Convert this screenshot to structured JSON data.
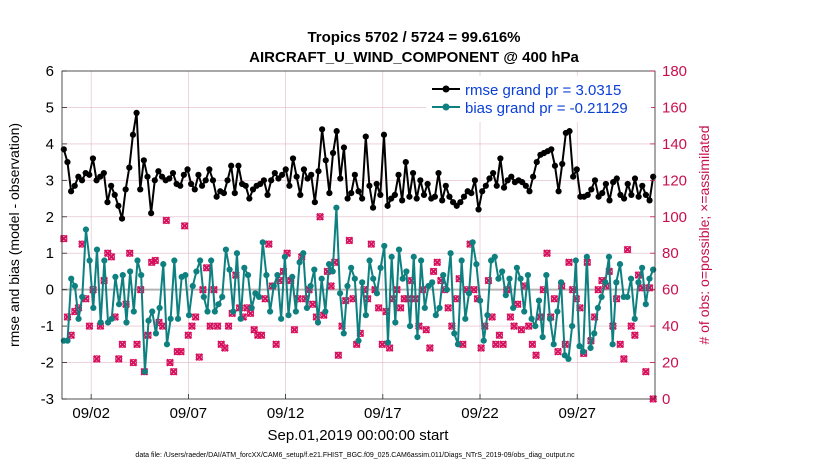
{
  "chart_data": {
    "type": "line",
    "title_line1": "Tropics 5702 / 5724 = 99.616%",
    "title_line2": "AIRCRAFT_U_WIND_COMPONENT @ 400 hPa",
    "ylabel_left": "rmse and bias (model - observation)",
    "ylabel_right": "# of obs: o=possible; ×=assimilated",
    "xlabel": "Sep.01,2019 00:00:00 start",
    "footnote": "data file: /Users/raeder/DAI/ATM_forcXX/CAM6_setup/f.e21.FHIST_BGC.f09_025.CAM6assim.011/Diags_NTrS_2019-09/obs_diag_output.nc",
    "x_range_days": [
      0.5,
      31.0
    ],
    "ylim_left": [
      -3,
      6
    ],
    "ylim_right": [
      0,
      180
    ],
    "yticks_left": [
      "-3",
      "-2",
      "-1",
      "0",
      "1",
      "2",
      "3",
      "4",
      "5",
      "6"
    ],
    "yticks_right": [
      "0",
      "20",
      "40",
      "60",
      "80",
      "100",
      "120",
      "140",
      "160",
      "180"
    ],
    "xticks": [
      {
        "day": 2,
        "label": "09/02"
      },
      {
        "day": 7,
        "label": "09/07"
      },
      {
        "day": 12,
        "label": "09/12"
      },
      {
        "day": 17,
        "label": "09/17"
      },
      {
        "day": 22,
        "label": "09/22"
      },
      {
        "day": 27,
        "label": "09/27"
      }
    ],
    "grid": true,
    "legend_position": "top-right",
    "colors": {
      "rmse": "#000000",
      "bias": "#0e8080",
      "obs": "#d6105d",
      "right_axis": "#c8104e",
      "legend_text": "#0a3fd6",
      "zero_line": "#b4b4b4",
      "grid": "#e0b8c8"
    },
    "series": [
      {
        "name": "rmse grand pr = 3.0315",
        "axis": "left",
        "values": [
          3.85,
          3.5,
          2.7,
          2.85,
          3.1,
          3.0,
          3.2,
          3.15,
          3.6,
          3.0,
          3.1,
          3.2,
          2.4,
          2.85,
          2.6,
          2.3,
          1.95,
          2.75,
          3.35,
          4.25,
          4.85,
          2.75,
          3.55,
          3.1,
          2.1,
          3.0,
          3.25,
          3.1,
          3.0,
          3.05,
          3.2,
          2.9,
          2.85,
          3.15,
          3.3,
          2.9,
          2.75,
          3.15,
          2.85,
          3.0,
          3.3,
          3.0,
          2.55,
          2.7,
          2.65,
          3.0,
          3.4,
          2.65,
          3.4,
          2.9,
          2.85,
          2.5,
          2.75,
          2.85,
          2.9,
          3.0,
          2.6,
          3.0,
          3.2,
          3.05,
          3.15,
          3.3,
          2.85,
          3.6,
          3.1,
          2.6,
          3.3,
          3.05,
          3.15,
          2.4,
          3.25,
          4.4,
          3.55,
          2.65,
          3.75,
          4.35,
          3.05,
          3.9,
          2.5,
          2.65,
          3.15,
          2.7,
          2.5,
          4.2,
          2.85,
          2.25,
          2.9,
          2.6,
          4.25,
          2.3,
          2.5,
          2.6,
          3.15,
          2.45,
          3.5,
          2.55,
          3.2,
          2.5,
          3.0,
          2.6,
          2.9,
          2.5,
          2.55,
          3.2,
          2.45,
          2.85,
          2.55,
          2.4,
          2.3,
          2.4,
          2.55,
          2.7,
          2.65,
          3.0,
          2.2,
          2.7,
          2.85,
          3.05,
          3.2,
          2.85,
          3.6,
          2.8,
          3.0,
          3.1,
          2.95,
          3.0,
          2.95,
          2.85,
          2.7,
          3.1,
          3.5,
          3.7,
          3.75,
          3.8,
          3.85,
          3.4,
          2.7,
          3.45,
          4.3,
          4.35,
          3.1,
          3.3,
          2.55,
          2.55,
          2.6,
          2.75,
          3.0,
          2.55,
          2.65,
          2.9,
          2.45,
          2.95,
          3.05,
          2.6,
          2.5,
          2.9,
          2.6,
          3.05,
          2.55,
          2.85,
          2.6,
          2.45,
          3.1
        ]
      },
      {
        "name": "bias grand pr = -0.21129",
        "axis": "left",
        "values": [
          -1.4,
          -1.4,
          0.3,
          0.1,
          -0.8,
          -0.2,
          1.65,
          0.8,
          -0.5,
          1.1,
          -0.9,
          0.8,
          -0.9,
          -0.8,
          0.35,
          -0.4,
          0.4,
          -0.9,
          0.5,
          -0.6,
          0.8,
          0.4,
          -2.25,
          -0.85,
          -0.6,
          -1.2,
          -0.5,
          0.7,
          -1.5,
          -0.8,
          0.8,
          -0.8,
          0.35,
          0.4,
          -0.7,
          0.1,
          0.5,
          0.8,
          -0.2,
          -0.6,
          0.8,
          -0.6,
          -0.4,
          -0.2,
          1.1,
          0.55,
          -0.6,
          1.0,
          -0.8,
          0.6,
          0.4,
          -0.5,
          -0.1,
          -0.2,
          1.3,
          0.4,
          -0.6,
          0.1,
          0.4,
          -0.8,
          0.9,
          -0.7,
          0.35,
          -0.6,
          0.75,
          1.0,
          -0.5,
          0.1,
          0.55,
          -0.9,
          0.3,
          -0.6,
          0.7,
          0.5,
          2.25,
          -0.1,
          -1.2,
          0.1,
          0.6,
          0.3,
          -1.4,
          0.2,
          -0.7,
          0.8,
          0.3,
          -0.1,
          0.6,
          1.2,
          -1.45,
          0.9,
          -0.9,
          1.1,
          0.3,
          0.5,
          -1.0,
          0.9,
          -1.3,
          0.8,
          -0.5,
          0.1,
          0.2,
          -0.7,
          -0.5,
          0.4,
          0.0,
          1.0,
          -1.2,
          -1.5,
          0.8,
          -0.8,
          -0.1,
          1.3,
          0.7,
          -0.3,
          -1.4,
          -0.7,
          0.8,
          0.9,
          0.3,
          0.5,
          -0.15,
          0.3,
          -0.5,
          0.6,
          0.3,
          -0.6,
          0.4,
          -0.8,
          -1.0,
          -0.3,
          -1.3,
          0.4,
          -0.8,
          -1.5,
          -0.6,
          0.2,
          -1.8,
          -1.9,
          -1.0,
          0.8,
          -1.55,
          -1.7,
          0.9,
          -1.6,
          -1.2,
          -0.5,
          -0.2,
          0.2,
          0.9,
          -1.5,
          0.2,
          0.7,
          -0.2,
          -0.2,
          0.3,
          -0.8,
          0.2,
          0.6,
          -0.4,
          0.3,
          0.55
        ]
      }
    ],
    "obs_counts": {
      "axis": "right",
      "values": [
        88,
        45,
        35,
        48,
        50,
        85,
        55,
        40,
        60,
        22,
        40,
        65,
        80,
        78,
        45,
        22,
        30,
        52,
        80,
        20,
        30,
        60,
        15,
        35,
        75,
        76,
        42,
        40,
        98,
        20,
        15,
        26,
        26,
        95,
        35,
        40,
        45,
        23,
        60,
        72,
        40,
        60,
        40,
        30,
        28,
        40,
        47,
        68,
        50,
        45,
        50,
        47,
        38,
        35,
        35,
        55,
        85,
        62,
        30,
        65,
        70,
        80,
        65,
        38,
        55,
        78,
        55,
        60,
        52,
        45,
        100,
        46,
        70,
        62,
        75,
        24,
        40,
        54,
        87,
        55,
        30,
        36,
        60,
        55,
        85,
        60,
        50,
        30,
        48,
        28,
        55,
        60,
        50,
        55,
        55,
        65,
        55,
        40,
        60,
        38,
        28,
        70,
        75,
        65,
        60,
        50,
        40,
        55,
        66,
        30,
        60,
        85,
        60,
        55,
        28,
        40,
        65,
        45,
        30,
        35,
        30,
        60,
        45,
        40,
        52,
        38,
        62,
        40,
        30,
        24,
        45,
        60,
        80,
        45,
        55,
        26,
        62,
        30,
        75,
        60,
        55,
        50,
        25,
        75,
        32,
        45,
        60,
        65,
        62,
        70,
        40,
        55,
        30,
        22,
        82,
        40,
        35,
        68,
        61,
        15,
        61,
        0
      ]
    },
    "legend": {
      "rmse_label": "rmse grand pr = 3.0315",
      "bias_label": "bias grand pr = -0.21129"
    }
  }
}
